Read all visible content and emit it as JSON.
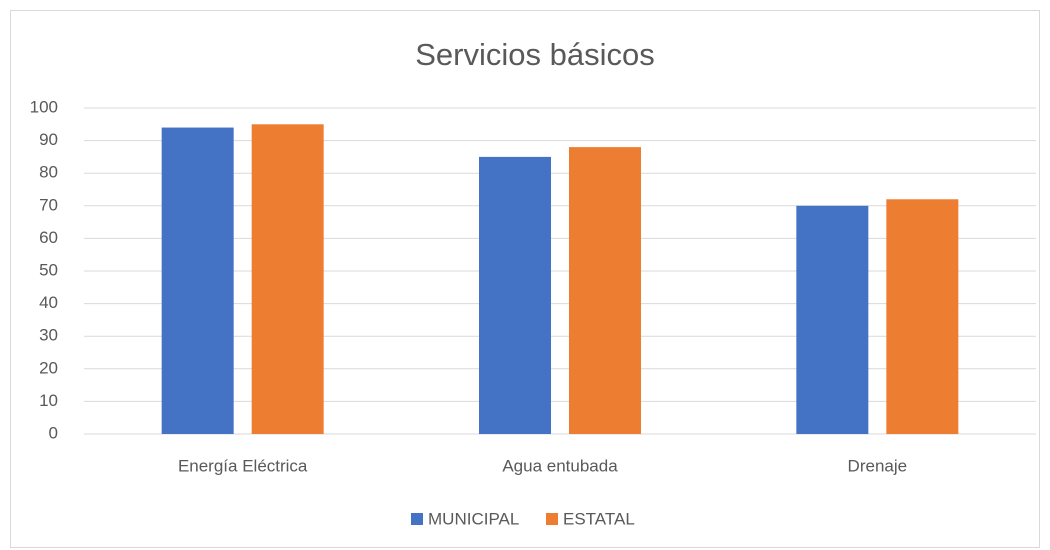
{
  "chart_data": {
    "type": "bar",
    "title": "Servicios básicos",
    "categories": [
      "Energía Eléctrica",
      "Agua entubada",
      "Drenaje"
    ],
    "series": [
      {
        "name": "MUNICIPAL",
        "color": "#4472c4",
        "values": [
          94,
          85,
          70
        ]
      },
      {
        "name": "ESTATAL",
        "color": "#ed7d31",
        "values": [
          95,
          88,
          72
        ]
      }
    ],
    "ylim": [
      0,
      100
    ],
    "yticks": [
      0,
      10,
      20,
      30,
      40,
      50,
      60,
      70,
      80,
      90,
      100
    ],
    "grid": true,
    "legend": "bottom"
  }
}
